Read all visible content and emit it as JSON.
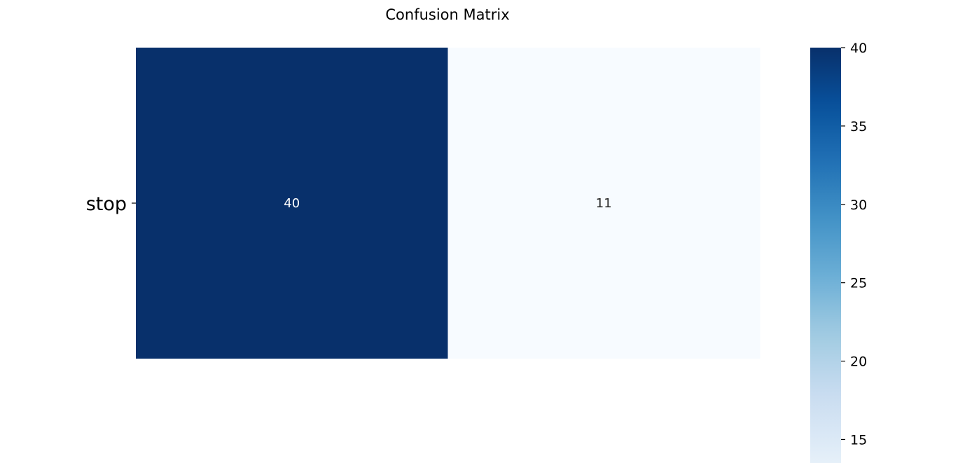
{
  "chart_data": {
    "type": "heatmap",
    "title": "Confusion Matrix",
    "rows": [
      "stop"
    ],
    "columns": [
      "",
      ""
    ],
    "values": [
      [
        40,
        11
      ]
    ],
    "colormap": "Blues",
    "colorbar": {
      "vmin": 11,
      "vmax": 40,
      "ticks": [
        15,
        20,
        25,
        30,
        35,
        40
      ],
      "visible_range": [
        13.5,
        40
      ]
    },
    "grid": false,
    "legend": "colorbar-right"
  }
}
